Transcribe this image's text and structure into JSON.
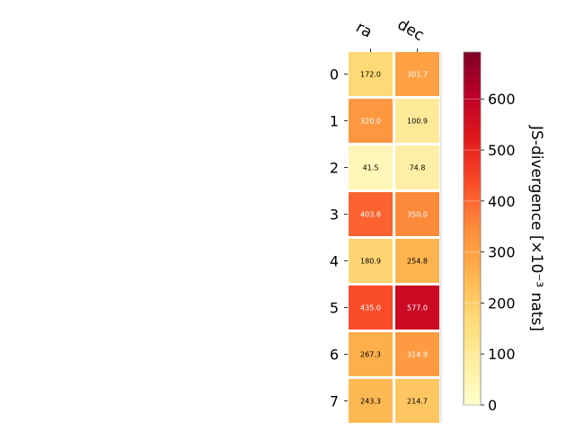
{
  "chart_data": {
    "type": "heatmap",
    "columns": [
      "ra",
      "dec"
    ],
    "rows": [
      "0",
      "1",
      "2",
      "3",
      "4",
      "5",
      "6",
      "7"
    ],
    "values": [
      [
        172.0,
        301.7
      ],
      [
        320.0,
        100.9
      ],
      [
        41.5,
        74.8
      ],
      [
        403.8,
        350.0
      ],
      [
        180.9,
        254.8
      ],
      [
        435.0,
        577.0
      ],
      [
        267.3,
        314.9
      ],
      [
        243.3,
        214.7
      ]
    ],
    "value_labels": [
      [
        "172.0",
        "301.7"
      ],
      [
        "320.0",
        "100.9"
      ],
      [
        "41.5",
        "74.8"
      ],
      [
        "403.8",
        "350.0"
      ],
      [
        "180.9",
        "254.8"
      ],
      [
        "435.0",
        "577.0"
      ],
      [
        "267.3",
        "314.9"
      ],
      [
        "243.3",
        "214.7"
      ]
    ],
    "colorbar": {
      "label": "JS-divergence [×10⁻³ nats]",
      "vmin": 0,
      "vmax": 692,
      "ticks": [
        0,
        100,
        200,
        300,
        400,
        500,
        600
      ],
      "colormap": "YlOrRd"
    },
    "colormap_stops": [
      "#ffffcc",
      "#ffeda0",
      "#fed976",
      "#feb24c",
      "#fd8d3c",
      "#fc4e2a",
      "#e31a1c",
      "#bd0026",
      "#800026"
    ],
    "text_color_dark": "#000000",
    "text_color_light": "#ffffff"
  }
}
